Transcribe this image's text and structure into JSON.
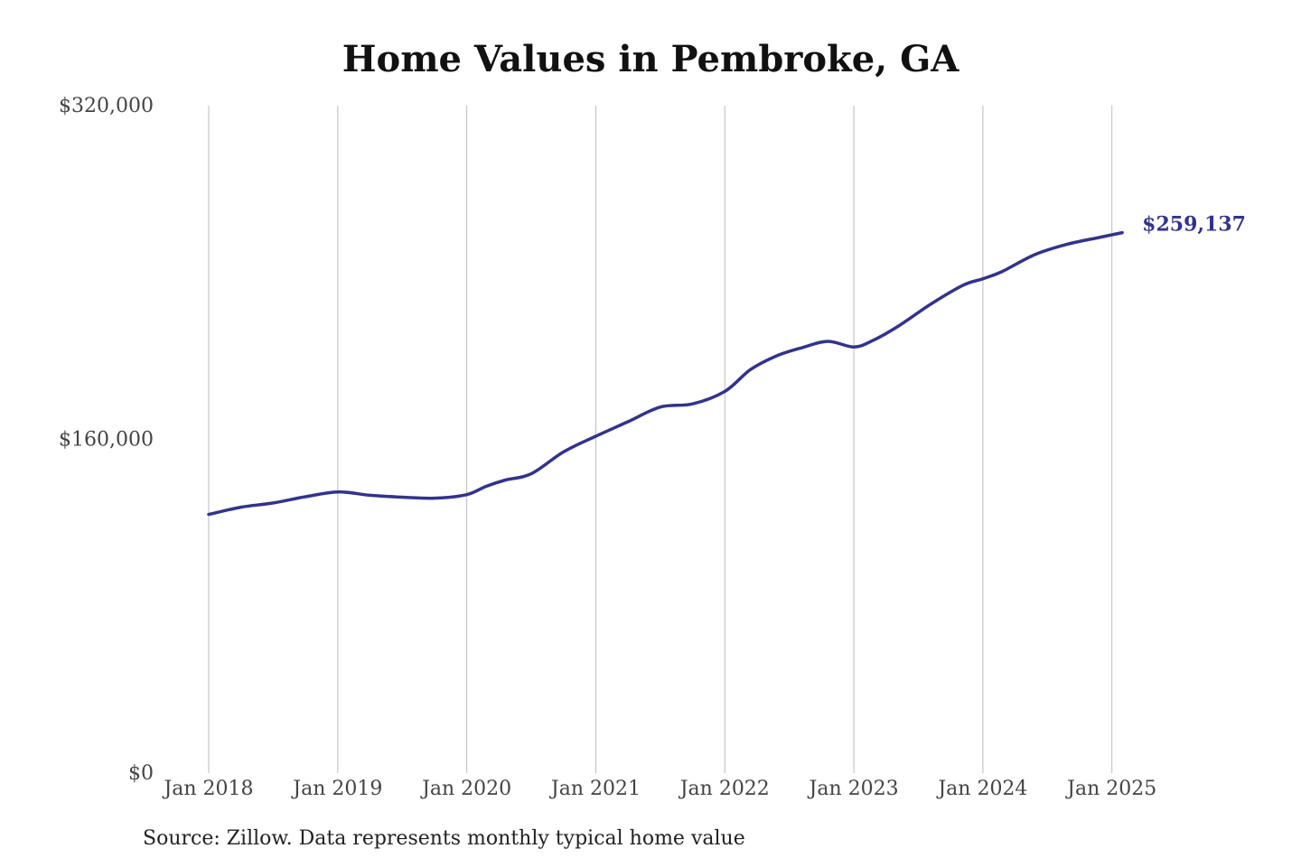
{
  "chart_data": {
    "type": "line",
    "title": "Home Values in Pembroke, GA",
    "source": "Source: Zillow. Data represents monthly typical home value",
    "line_color": "#33338c",
    "grid_color": "#bbbbbb",
    "xlabel": "",
    "ylabel": "",
    "x_ticks": [
      {
        "label": "Jan 2018",
        "t": 2018.0
      },
      {
        "label": "Jan 2019",
        "t": 2019.0
      },
      {
        "label": "Jan 2020",
        "t": 2020.0
      },
      {
        "label": "Jan 2021",
        "t": 2021.0
      },
      {
        "label": "Jan 2022",
        "t": 2022.0
      },
      {
        "label": "Jan 2023",
        "t": 2023.0
      },
      {
        "label": "Jan 2024",
        "t": 2024.0
      },
      {
        "label": "Jan 2025",
        "t": 2025.0
      }
    ],
    "y_ticks": [
      {
        "label": "$320,000",
        "v": 320000
      },
      {
        "label": "$160,000",
        "v": 160000
      },
      {
        "label": "$0",
        "v": 0
      }
    ],
    "xlim": [
      2018.0,
      2025.1
    ],
    "ylim": [
      0,
      320000
    ],
    "end_label": "$259,137",
    "series": [
      {
        "values": [
          [
            2018.0,
            124000
          ],
          [
            2018.25,
            127500
          ],
          [
            2018.5,
            129500
          ],
          [
            2018.75,
            132500
          ],
          [
            2019.0,
            134800
          ],
          [
            2019.25,
            133200
          ],
          [
            2019.5,
            132300
          ],
          [
            2019.75,
            131800
          ],
          [
            2020.0,
            133500
          ],
          [
            2020.15,
            137500
          ],
          [
            2020.3,
            140500
          ],
          [
            2020.5,
            143500
          ],
          [
            2020.75,
            154000
          ],
          [
            2021.0,
            161500
          ],
          [
            2021.25,
            168500
          ],
          [
            2021.5,
            175500
          ],
          [
            2021.75,
            177000
          ],
          [
            2022.0,
            183000
          ],
          [
            2022.2,
            193500
          ],
          [
            2022.4,
            200000
          ],
          [
            2022.6,
            204000
          ],
          [
            2022.8,
            207000
          ],
          [
            2023.0,
            204300
          ],
          [
            2023.15,
            207500
          ],
          [
            2023.35,
            214500
          ],
          [
            2023.6,
            225000
          ],
          [
            2023.85,
            234000
          ],
          [
            2024.0,
            237000
          ],
          [
            2024.15,
            240500
          ],
          [
            2024.4,
            248500
          ],
          [
            2024.65,
            253500
          ],
          [
            2024.9,
            256800
          ],
          [
            2025.08,
            259137
          ]
        ]
      }
    ]
  }
}
